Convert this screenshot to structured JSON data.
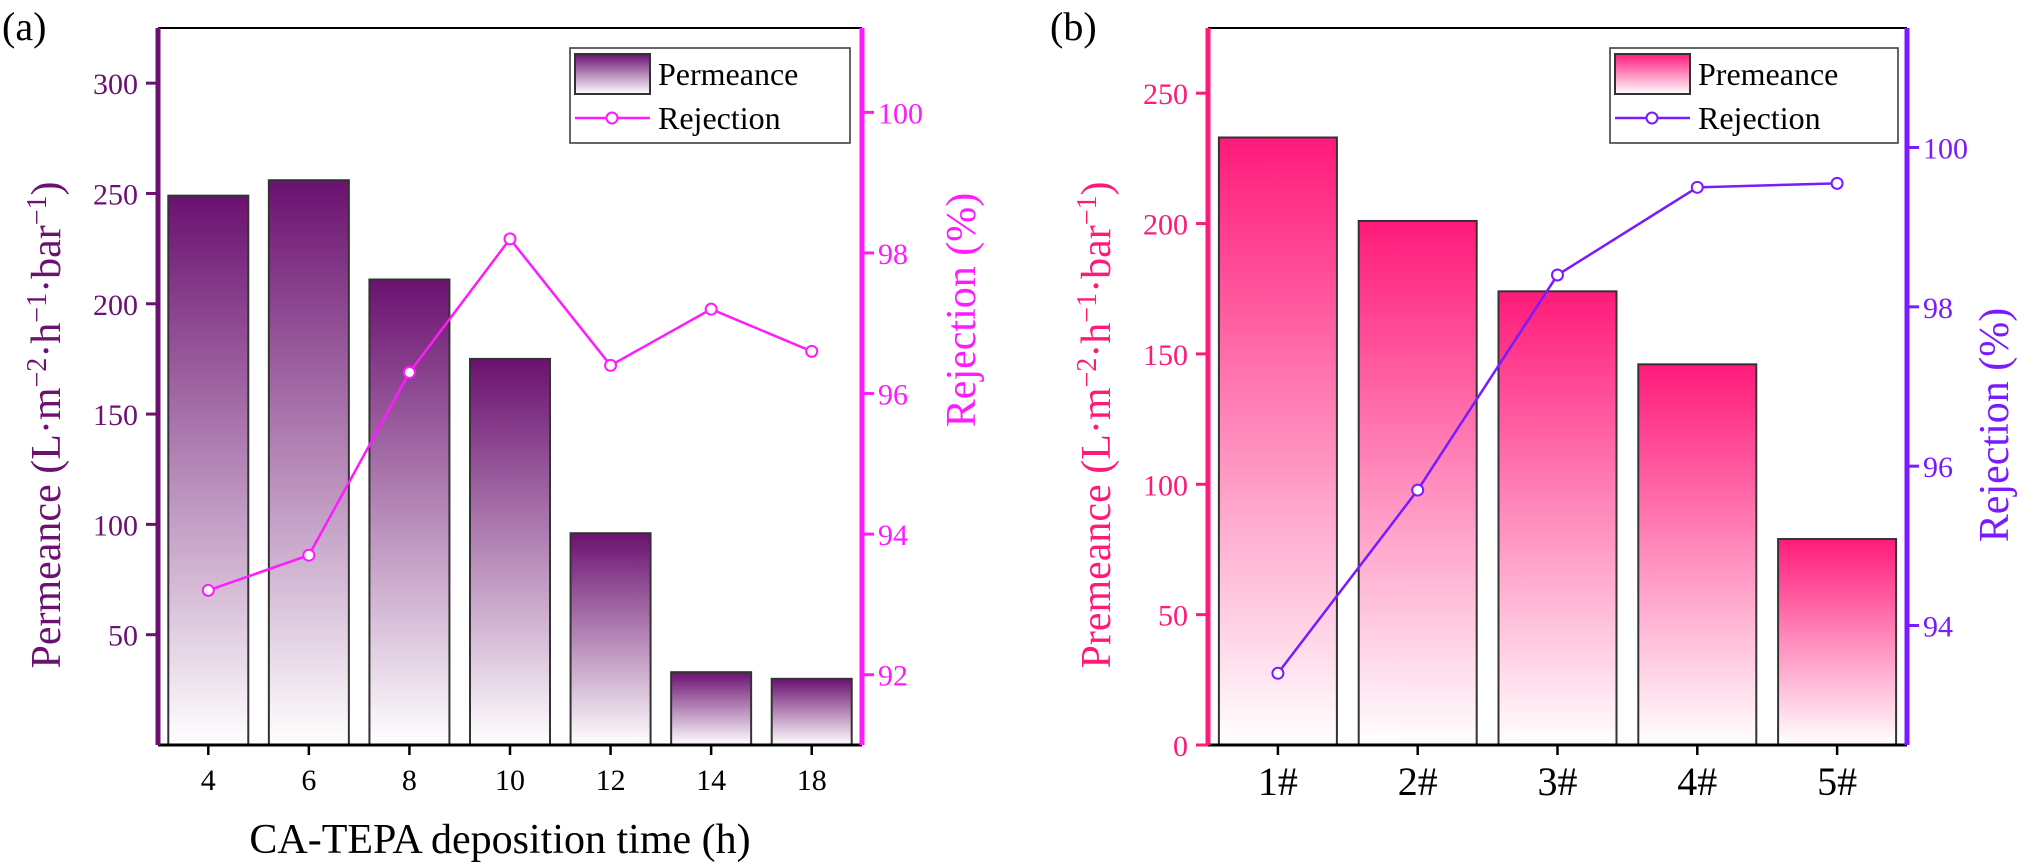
{
  "panels": [
    {
      "label": "(a)",
      "bar_legend": "Permeance",
      "line_legend": "Rejection",
      "colors": {
        "bar": "#6b1170",
        "line": "#ff1aff",
        "left_axis": "#6b1170",
        "right_axis": "#ff1aff",
        "bar_top": "#6b1170",
        "bar_bottom": "#ffffff"
      }
    },
    {
      "label": "(b)",
      "bar_legend": "Premeance",
      "line_legend": "Rejection",
      "colors": {
        "bar": "#ff1a7a",
        "line": "#7a1aff",
        "left_axis": "#ff1a7a",
        "right_axis": "#7a1aff",
        "bar_top": "#ff1a7a",
        "bar_bottom": "#ffffff"
      }
    }
  ],
  "chart_data": [
    {
      "type": "bar",
      "categories": [
        "4",
        "6",
        "8",
        "10",
        "12",
        "14",
        "18"
      ],
      "series": [
        {
          "name": "Permeance",
          "values": [
            249,
            256,
            211,
            175,
            96,
            33,
            30
          ],
          "axis": "left"
        },
        {
          "name": "Rejection",
          "values": [
            93.2,
            93.7,
            96.3,
            98.2,
            96.4,
            97.2,
            96.6
          ],
          "axis": "right",
          "kind": "line"
        }
      ],
      "xlabel": "CA-TEPA deposition time  (h)",
      "ylabel": "Permeance  (L·m−2·h−1·bar−1)",
      "y2label": "Rejection  (%)",
      "ylim": [
        0,
        325
      ],
      "y_ticks": [
        50,
        100,
        150,
        200,
        250,
        300
      ],
      "y2lim": [
        91,
        101.2
      ],
      "y2_ticks": [
        92,
        94,
        96,
        98,
        100
      ],
      "legend": "top-right",
      "grid": false
    },
    {
      "type": "bar",
      "categories": [
        "1#",
        "2#",
        "3#",
        "4#",
        "5#"
      ],
      "series": [
        {
          "name": "Premeance",
          "values": [
            233,
            201,
            174,
            146,
            79
          ],
          "axis": "left"
        },
        {
          "name": "Rejection",
          "values": [
            93.4,
            95.7,
            98.4,
            99.5,
            99.55
          ],
          "axis": "right",
          "kind": "line"
        }
      ],
      "xlabel": "",
      "ylabel": "Premeance (L·m−2·h−1·bar−1)",
      "y2label": "Rejection (%)",
      "ylim": [
        0,
        275
      ],
      "y_ticks": [
        0,
        50,
        100,
        150,
        200,
        250
      ],
      "y2lim": [
        92.5,
        101.5
      ],
      "y2_ticks": [
        94,
        96,
        98,
        100
      ],
      "legend": "top-right",
      "grid": false
    }
  ]
}
